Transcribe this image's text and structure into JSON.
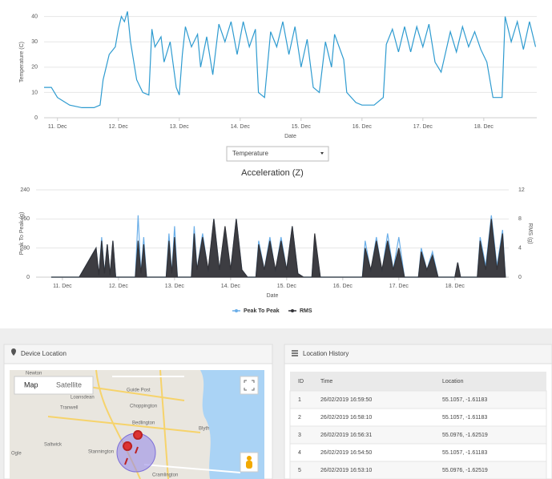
{
  "chart_data": [
    {
      "type": "line",
      "y_label": "Temperature (C)",
      "x_label": "Date",
      "color": "#2e9bd0",
      "grid": true,
      "xlim": [
        10.78,
        18.87
      ],
      "ylim": [
        0,
        44
      ],
      "yticks": [
        0,
        10,
        20,
        30,
        40
      ],
      "xticks": [
        {
          "value": 11,
          "label": "11. Dec"
        },
        {
          "value": 12,
          "label": "12. Dec"
        },
        {
          "value": 13,
          "label": "13. Dec"
        },
        {
          "value": 14,
          "label": "14. Dec"
        },
        {
          "value": 15,
          "label": "15. Dec"
        },
        {
          "value": 16,
          "label": "16. Dec"
        },
        {
          "value": 17,
          "label": "17. Dec"
        },
        {
          "value": 18,
          "label": "18. Dec"
        }
      ],
      "x": [
        10.78,
        10.9,
        11.0,
        11.2,
        11.4,
        11.6,
        11.7,
        11.75,
        11.85,
        11.95,
        12.0,
        12.05,
        12.1,
        12.15,
        12.2,
        12.3,
        12.4,
        12.5,
        12.55,
        12.6,
        12.7,
        12.75,
        12.85,
        12.95,
        13.0,
        13.05,
        13.1,
        13.2,
        13.3,
        13.35,
        13.45,
        13.55,
        13.65,
        13.75,
        13.85,
        13.95,
        14.05,
        14.15,
        14.25,
        14.3,
        14.4,
        14.5,
        14.6,
        14.7,
        14.8,
        14.9,
        15.0,
        15.1,
        15.2,
        15.3,
        15.4,
        15.5,
        15.55,
        15.7,
        15.75,
        15.9,
        16.0,
        16.2,
        16.35,
        16.4,
        16.5,
        16.6,
        16.7,
        16.8,
        16.9,
        17.0,
        17.1,
        17.2,
        17.3,
        17.45,
        17.55,
        17.65,
        17.75,
        17.85,
        17.95,
        18.05,
        18.15,
        18.3,
        18.35,
        18.45,
        18.55,
        18.65,
        18.75,
        18.85
      ],
      "values": [
        12,
        12,
        8,
        5,
        4,
        4,
        5,
        15,
        25,
        28,
        35,
        40,
        38,
        42,
        30,
        15,
        10,
        9,
        35,
        28,
        32,
        22,
        30,
        12,
        9,
        25,
        36,
        28,
        33,
        20,
        32,
        17,
        37,
        30,
        38,
        25,
        38,
        28,
        35,
        10,
        8,
        34,
        28,
        38,
        25,
        36,
        20,
        31,
        12,
        10,
        30,
        20,
        33,
        23,
        10,
        6,
        5,
        5,
        8,
        29,
        35,
        26,
        36,
        26,
        36,
        28,
        37,
        22,
        18,
        34,
        26,
        36,
        28,
        34,
        27,
        22,
        8,
        8,
        40,
        30,
        38,
        27,
        38,
        28
      ]
    },
    {
      "type": "line",
      "title": "Acceleration (Z)",
      "y_label": "Peak To Peak (g)",
      "y2_label": "RMS (g)",
      "x_label": "Date",
      "grid": true,
      "legend": "bottom",
      "xlim": [
        10.53,
        18.96
      ],
      "ylim": [
        0,
        240
      ],
      "yticks": [
        0,
        80,
        160,
        240
      ],
      "y2lim": [
        0,
        12
      ],
      "y2ticks": [
        0,
        4,
        8,
        12
      ],
      "xticks": [
        {
          "value": 11,
          "label": "11. Dec"
        },
        {
          "value": 12,
          "label": "12. Dec"
        },
        {
          "value": 13,
          "label": "13. Dec"
        },
        {
          "value": 14,
          "label": "14. Dec"
        },
        {
          "value": 15,
          "label": "15. Dec"
        },
        {
          "value": 16,
          "label": "16. Dec"
        },
        {
          "value": 17,
          "label": "17. Dec"
        },
        {
          "value": 18,
          "label": "18. Dec"
        }
      ],
      "x": [
        10.8,
        11.3,
        11.6,
        11.65,
        11.7,
        11.75,
        11.8,
        11.85,
        11.9,
        11.95,
        12.3,
        12.35,
        12.4,
        12.45,
        12.5,
        12.85,
        12.9,
        12.95,
        13.0,
        13.05,
        13.3,
        13.35,
        13.4,
        13.5,
        13.6,
        13.7,
        13.8,
        13.9,
        14.0,
        14.1,
        14.2,
        14.3,
        14.45,
        14.5,
        14.6,
        14.7,
        14.8,
        14.9,
        15.0,
        15.1,
        15.2,
        15.3,
        15.45,
        15.5,
        15.6,
        16.35,
        16.4,
        16.5,
        16.6,
        16.7,
        16.8,
        16.9,
        17.0,
        17.1,
        17.35,
        17.4,
        17.5,
        17.6,
        17.7,
        18.0,
        18.05,
        18.1,
        18.4,
        18.45,
        18.55,
        18.65,
        18.75,
        18.85,
        18.9
      ],
      "series": [
        {
          "name": "Peak To Peak",
          "color": "#6aaee8",
          "values": [
            0,
            0,
            80,
            5,
            110,
            10,
            90,
            5,
            100,
            0,
            0,
            170,
            10,
            110,
            0,
            0,
            120,
            10,
            140,
            0,
            0,
            140,
            20,
            120,
            15,
            160,
            20,
            130,
            20,
            160,
            20,
            0,
            0,
            100,
            20,
            110,
            15,
            110,
            20,
            140,
            10,
            0,
            0,
            110,
            0,
            0,
            100,
            15,
            110,
            15,
            120,
            20,
            110,
            0,
            0,
            80,
            20,
            70,
            0,
            0,
            40,
            0,
            0,
            110,
            30,
            170,
            30,
            130,
            0
          ]
        },
        {
          "name": "RMS",
          "color": "#333338",
          "axis": "y2",
          "style": "area",
          "values": [
            0,
            0,
            4,
            0.3,
            5,
            0.5,
            4.5,
            0.3,
            5,
            0,
            0,
            5,
            0.5,
            4.5,
            0,
            0,
            5,
            0.5,
            5.5,
            0,
            0,
            6,
            1,
            5.5,
            1,
            8,
            1,
            7,
            1,
            8,
            1,
            0,
            0,
            4.5,
            1,
            5,
            1,
            5,
            1,
            7,
            0.5,
            0,
            0,
            6,
            0,
            0,
            4,
            1,
            5,
            1,
            5,
            1,
            4,
            0,
            0,
            3.5,
            1,
            3,
            0,
            0,
            2,
            0,
            0,
            5,
            1,
            8,
            1,
            6,
            0
          ]
        }
      ]
    }
  ],
  "selector": {
    "value": "Temperature"
  },
  "device_location": {
    "title": "Device Location",
    "map_buttons": [
      "Map",
      "Satellite"
    ],
    "places": [
      "Newton",
      "Loansdean",
      "Tranwell",
      "Guide Post",
      "Choppington",
      "Bedlington",
      "Blyth",
      "Saltwick",
      "Stannington",
      "Ogle",
      "Cramlington"
    ]
  },
  "location_history": {
    "title": "Location History",
    "columns": [
      "ID",
      "Time",
      "Location"
    ],
    "rows": [
      [
        "1",
        "26/02/2019 16:59:50",
        "55.1057, -1.61183"
      ],
      [
        "2",
        "26/02/2019 16:58:10",
        "55.1057, -1.61183"
      ],
      [
        "3",
        "26/02/2019 16:56:31",
        "55.0976, -1.62519"
      ],
      [
        "4",
        "26/02/2019 16:54:50",
        "55.1057, -1.61183"
      ],
      [
        "5",
        "26/02/2019 16:53:10",
        "55.0976, -1.62519"
      ]
    ]
  }
}
